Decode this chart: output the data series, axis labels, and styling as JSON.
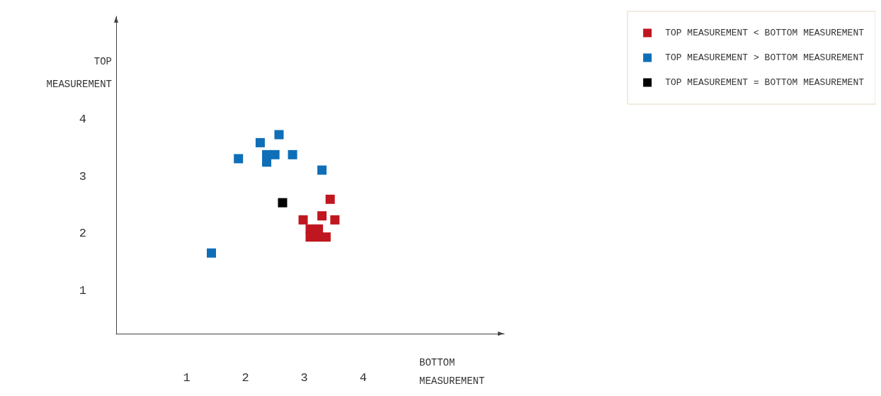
{
  "chart_data": {
    "type": "scatter",
    "xlabel": "BOTTOM\nMEASUREMENT",
    "ylabel": "TOP\nMEASUREMENT",
    "marker": "square",
    "legend": "top right",
    "grid": false,
    "xlim": [
      -0.2,
      6.4
    ],
    "ylim": [
      0.25,
      5.8
    ],
    "xticks": [
      1,
      2,
      3,
      4
    ],
    "yticks": [
      1,
      2,
      3,
      4
    ],
    "series": [
      {
        "name": "TOP MEASUREMENT < BOTTOM MEASUREMENT",
        "color": "#c0161f",
        "x": [
          3.44,
          3.3,
          2.98,
          3.52,
          3.1,
          3.24,
          3.1,
          3.24,
          3.37
        ],
        "values": [
          2.6,
          2.31,
          2.24,
          2.24,
          2.08,
          2.08,
          1.94,
          1.94,
          1.94
        ]
      },
      {
        "name": "TOP MEASUREMENT > BOTTOM MEASUREMENT",
        "color": "#0f6eb8",
        "x": [
          1.42,
          1.88,
          2.25,
          2.36,
          2.36,
          2.5,
          2.57,
          2.8,
          3.3
        ],
        "values": [
          1.66,
          3.31,
          3.59,
          3.38,
          3.25,
          3.38,
          3.73,
          3.38,
          3.11
        ]
      },
      {
        "name": "TOP MEASUREMENT = BOTTOM MEASUREMENT",
        "color": "#000000",
        "x": [
          2.63
        ],
        "values": [
          2.54
        ]
      }
    ]
  }
}
